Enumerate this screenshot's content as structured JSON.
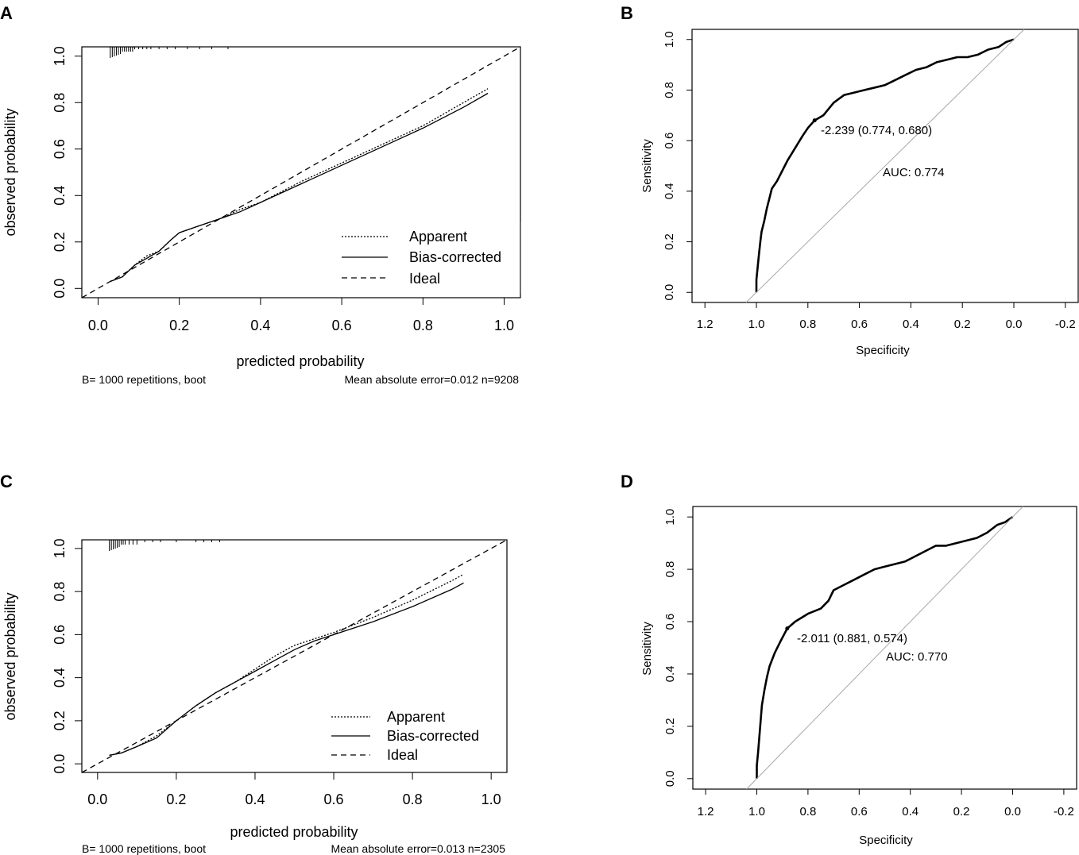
{
  "chart_data": [
    {
      "panel": "A",
      "type": "line",
      "xlabel": "predicted probability",
      "ylabel": "observed probability",
      "xlim": [
        -0.04,
        1.04
      ],
      "ylim": [
        -0.04,
        1.04
      ],
      "x_ticks": [
        "0.0",
        "0.2",
        "0.4",
        "0.6",
        "0.8",
        "1.0"
      ],
      "y_ticks": [
        "0.0",
        "0.2",
        "0.4",
        "0.6",
        "0.8",
        "1.0"
      ],
      "footer_left": "B= 1000 repetitions, boot",
      "footer_right": "Mean absolute error=0.012 n=9208",
      "legend": [
        "Apparent",
        "Bias-corrected",
        "Ideal"
      ],
      "series": [
        {
          "name": "Apparent",
          "style": "dotted",
          "x": [
            0.03,
            0.06,
            0.09,
            0.12,
            0.15,
            0.18,
            0.2,
            0.25,
            0.3,
            0.35,
            0.4,
            0.5,
            0.6,
            0.7,
            0.8,
            0.9,
            0.96
          ],
          "y": [
            0.03,
            0.05,
            0.1,
            0.14,
            0.16,
            0.21,
            0.24,
            0.27,
            0.3,
            0.34,
            0.37,
            0.46,
            0.54,
            0.62,
            0.7,
            0.8,
            0.86
          ]
        },
        {
          "name": "Bias-corrected",
          "style": "solid",
          "x": [
            0.03,
            0.06,
            0.09,
            0.12,
            0.15,
            0.18,
            0.2,
            0.25,
            0.3,
            0.35,
            0.4,
            0.5,
            0.6,
            0.7,
            0.8,
            0.9,
            0.96
          ],
          "y": [
            0.03,
            0.05,
            0.1,
            0.13,
            0.16,
            0.21,
            0.24,
            0.27,
            0.3,
            0.33,
            0.37,
            0.45,
            0.53,
            0.61,
            0.69,
            0.78,
            0.84
          ]
        },
        {
          "name": "Ideal",
          "style": "dashed",
          "x": [
            -0.04,
            1.04
          ],
          "y": [
            -0.04,
            1.04
          ]
        }
      ],
      "rug": [
        0.03,
        0.035,
        0.04,
        0.045,
        0.05,
        0.055,
        0.06,
        0.065,
        0.07,
        0.075,
        0.08,
        0.085,
        0.09,
        0.1,
        0.11,
        0.12,
        0.13,
        0.15,
        0.17,
        0.19,
        0.22,
        0.25,
        0.28,
        0.32
      ]
    },
    {
      "panel": "B",
      "type": "line",
      "xlabel": "Specificity",
      "ylabel": "Sensitivity",
      "xlim": [
        1.25,
        -0.25
      ],
      "ylim": [
        -0.04,
        1.04
      ],
      "x_ticks": [
        "1.2",
        "1.0",
        "0.8",
        "0.6",
        "0.4",
        "0.2",
        "0.0",
        "-0.2"
      ],
      "y_ticks": [
        "0.0",
        "0.2",
        "0.4",
        "0.6",
        "0.8",
        "1.0"
      ],
      "auc_label": "AUC: 0.774",
      "threshold_label": "-2.239 (0.774, 0.680)",
      "threshold_point": {
        "specificity": 0.774,
        "sensitivity": 0.68
      },
      "series": [
        {
          "name": "ROC",
          "specificity": [
            1.0,
            1.0,
            0.995,
            0.99,
            0.985,
            0.98,
            0.97,
            0.96,
            0.95,
            0.94,
            0.92,
            0.9,
            0.88,
            0.85,
            0.82,
            0.8,
            0.774,
            0.74,
            0.7,
            0.66,
            0.62,
            0.58,
            0.54,
            0.5,
            0.46,
            0.42,
            0.38,
            0.34,
            0.3,
            0.26,
            0.22,
            0.18,
            0.14,
            0.1,
            0.06,
            0.03,
            0.0
          ],
          "sensitivity": [
            0.0,
            0.05,
            0.1,
            0.15,
            0.2,
            0.24,
            0.28,
            0.33,
            0.37,
            0.41,
            0.44,
            0.48,
            0.52,
            0.57,
            0.62,
            0.65,
            0.68,
            0.7,
            0.75,
            0.78,
            0.79,
            0.8,
            0.81,
            0.82,
            0.84,
            0.86,
            0.88,
            0.89,
            0.91,
            0.92,
            0.93,
            0.93,
            0.94,
            0.96,
            0.97,
            0.99,
            1.0
          ]
        },
        {
          "name": "Reference",
          "specificity": [
            1.04,
            -0.04
          ],
          "sensitivity": [
            -0.04,
            1.04
          ]
        }
      ]
    },
    {
      "panel": "C",
      "type": "line",
      "xlabel": "predicted probability",
      "ylabel": "observed probability",
      "xlim": [
        -0.04,
        1.04
      ],
      "ylim": [
        -0.04,
        1.04
      ],
      "x_ticks": [
        "0.0",
        "0.2",
        "0.4",
        "0.6",
        "0.8",
        "1.0"
      ],
      "y_ticks": [
        "0.0",
        "0.2",
        "0.4",
        "0.6",
        "0.8",
        "1.0"
      ],
      "footer_left": "B= 1000 repetitions, boot",
      "footer_right": "Mean absolute error=0.013 n=2305",
      "legend": [
        "Apparent",
        "Bias-corrected",
        "Ideal"
      ],
      "series": [
        {
          "name": "Apparent",
          "style": "dotted",
          "x": [
            0.03,
            0.06,
            0.1,
            0.15,
            0.2,
            0.25,
            0.3,
            0.35,
            0.4,
            0.45,
            0.5,
            0.55,
            0.6,
            0.7,
            0.8,
            0.9,
            0.93
          ],
          "y": [
            0.04,
            0.05,
            0.08,
            0.13,
            0.2,
            0.27,
            0.33,
            0.38,
            0.44,
            0.5,
            0.55,
            0.58,
            0.61,
            0.68,
            0.76,
            0.85,
            0.88
          ]
        },
        {
          "name": "Bias-corrected",
          "style": "solid",
          "x": [
            0.03,
            0.06,
            0.1,
            0.15,
            0.2,
            0.25,
            0.3,
            0.35,
            0.4,
            0.45,
            0.5,
            0.55,
            0.6,
            0.7,
            0.8,
            0.9,
            0.93
          ],
          "y": [
            0.04,
            0.05,
            0.08,
            0.12,
            0.2,
            0.27,
            0.33,
            0.38,
            0.43,
            0.48,
            0.53,
            0.57,
            0.6,
            0.66,
            0.73,
            0.81,
            0.84
          ]
        },
        {
          "name": "Ideal",
          "style": "dashed",
          "x": [
            -0.04,
            1.04
          ],
          "y": [
            -0.04,
            1.04
          ]
        }
      ],
      "rug": [
        0.03,
        0.035,
        0.04,
        0.045,
        0.05,
        0.055,
        0.06,
        0.065,
        0.07,
        0.08,
        0.09,
        0.1,
        0.12,
        0.14,
        0.16,
        0.2,
        0.25,
        0.27,
        0.29,
        0.31
      ]
    },
    {
      "panel": "D",
      "type": "line",
      "xlabel": "Specificity",
      "ylabel": "Sensitivity",
      "xlim": [
        1.25,
        -0.25
      ],
      "ylim": [
        -0.04,
        1.04
      ],
      "x_ticks": [
        "1.2",
        "1.0",
        "0.8",
        "0.6",
        "0.4",
        "0.2",
        "0.0",
        "-0.2"
      ],
      "y_ticks": [
        "0.0",
        "0.2",
        "0.4",
        "0.6",
        "0.8",
        "1.0"
      ],
      "auc_label": "AUC: 0.770",
      "threshold_label": "-2.011 (0.881, 0.574)",
      "threshold_point": {
        "specificity": 0.881,
        "sensitivity": 0.574
      },
      "series": [
        {
          "name": "ROC",
          "specificity": [
            1.0,
            1.0,
            0.995,
            0.99,
            0.985,
            0.98,
            0.97,
            0.96,
            0.95,
            0.93,
            0.91,
            0.881,
            0.85,
            0.8,
            0.75,
            0.72,
            0.7,
            0.66,
            0.62,
            0.58,
            0.54,
            0.5,
            0.46,
            0.42,
            0.38,
            0.34,
            0.3,
            0.26,
            0.22,
            0.18,
            0.14,
            0.1,
            0.06,
            0.03,
            0.0
          ],
          "sensitivity": [
            0.0,
            0.05,
            0.1,
            0.16,
            0.22,
            0.28,
            0.34,
            0.39,
            0.43,
            0.48,
            0.52,
            0.574,
            0.6,
            0.63,
            0.65,
            0.68,
            0.72,
            0.74,
            0.76,
            0.78,
            0.8,
            0.81,
            0.82,
            0.83,
            0.85,
            0.87,
            0.89,
            0.89,
            0.9,
            0.91,
            0.92,
            0.94,
            0.97,
            0.98,
            1.0
          ]
        },
        {
          "name": "Reference",
          "specificity": [
            1.04,
            -0.04
          ],
          "sensitivity": [
            -0.04,
            1.04
          ]
        }
      ]
    }
  ]
}
